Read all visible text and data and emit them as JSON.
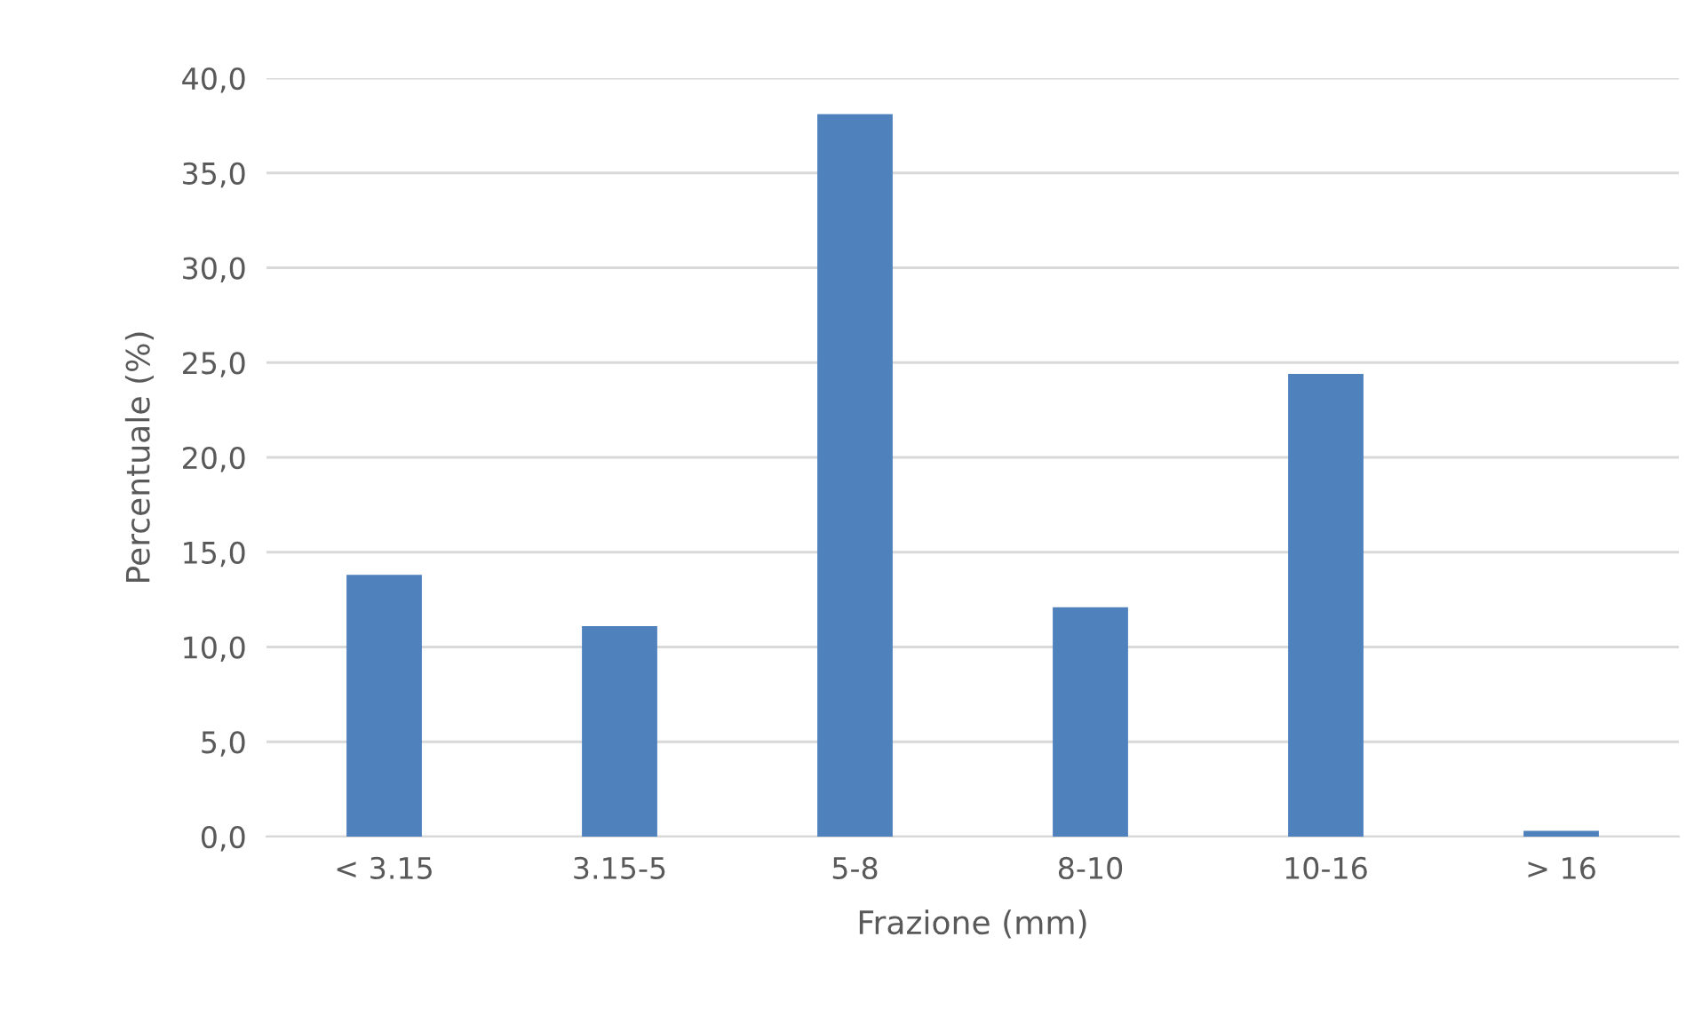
{
  "chart_data": {
    "type": "bar",
    "xlabel": "Frazione (mm)",
    "ylabel": "Percentuale (%)",
    "categories": [
      "< 3.15",
      "3.15-5",
      "5-8",
      "8-10",
      "10-16",
      "> 16"
    ],
    "values": [
      13.8,
      11.1,
      38.1,
      12.1,
      24.4,
      0.3
    ],
    "color": "#4f81bd",
    "ylim": [
      0,
      40
    ],
    "yticks": [
      {
        "value": 0,
        "label": "0,0"
      },
      {
        "value": 5,
        "label": "5,0"
      },
      {
        "value": 10,
        "label": "10,0"
      },
      {
        "value": 15,
        "label": "15,0"
      },
      {
        "value": 20,
        "label": "20,0"
      },
      {
        "value": 25,
        "label": "25,0"
      },
      {
        "value": 30,
        "label": "30,0"
      },
      {
        "value": 35,
        "label": "35,0"
      },
      {
        "value": 40,
        "label": "40,0"
      }
    ],
    "grid": "y",
    "legend": false
  }
}
